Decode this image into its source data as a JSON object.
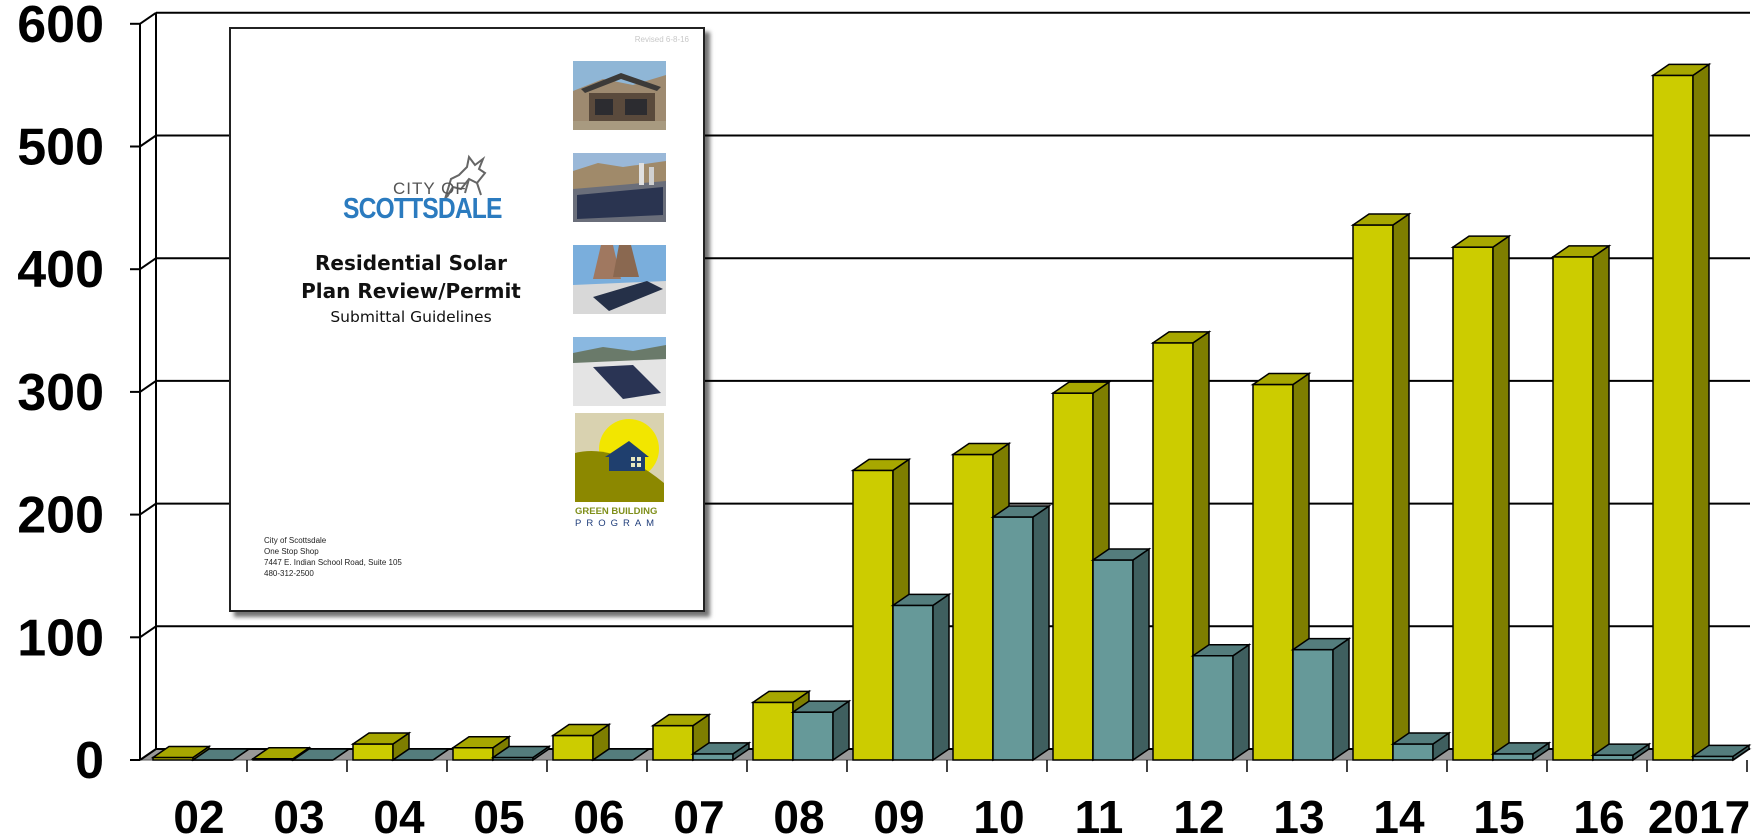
{
  "chart_data": {
    "type": "bar",
    "title": "",
    "xlabel": "",
    "ylabel": "",
    "categories": [
      "02",
      "03",
      "04",
      "05",
      "06",
      "07",
      "08",
      "09",
      "10",
      "11",
      "12",
      "13",
      "14",
      "15",
      "16",
      "2017"
    ],
    "y_ticks": [
      "0",
      "100",
      "200",
      "300",
      "400",
      "500",
      "600"
    ],
    "ylim": [
      0,
      600
    ],
    "grid": true,
    "style": "3d-clustered-columns",
    "series": [
      {
        "color": "#cccc00",
        "values": [
          2,
          1,
          13,
          10,
          20,
          28,
          47,
          236,
          249,
          299,
          340,
          306,
          436,
          418,
          410,
          558
        ]
      },
      {
        "color": "#669999",
        "values": [
          0,
          0,
          0,
          2,
          0,
          5,
          39,
          126,
          198,
          163,
          85,
          90,
          13,
          5,
          4,
          3
        ]
      }
    ]
  },
  "document": {
    "revised": "Revised 6-8-16",
    "logo_city_of": "CITY OF",
    "logo_name": "SCOTTSDALE",
    "title_line1": "Residential Solar",
    "title_line2": "Plan Review/Permit",
    "subtitle": "Submittal Guidelines",
    "green_building_line1": "GREEN BUILDING",
    "green_building_line2": "PROGRAM",
    "address": [
      "City of Scottsdale",
      "One Stop Shop",
      "7447 E. Indian School Road, Suite 105",
      "480-312-2500"
    ]
  }
}
